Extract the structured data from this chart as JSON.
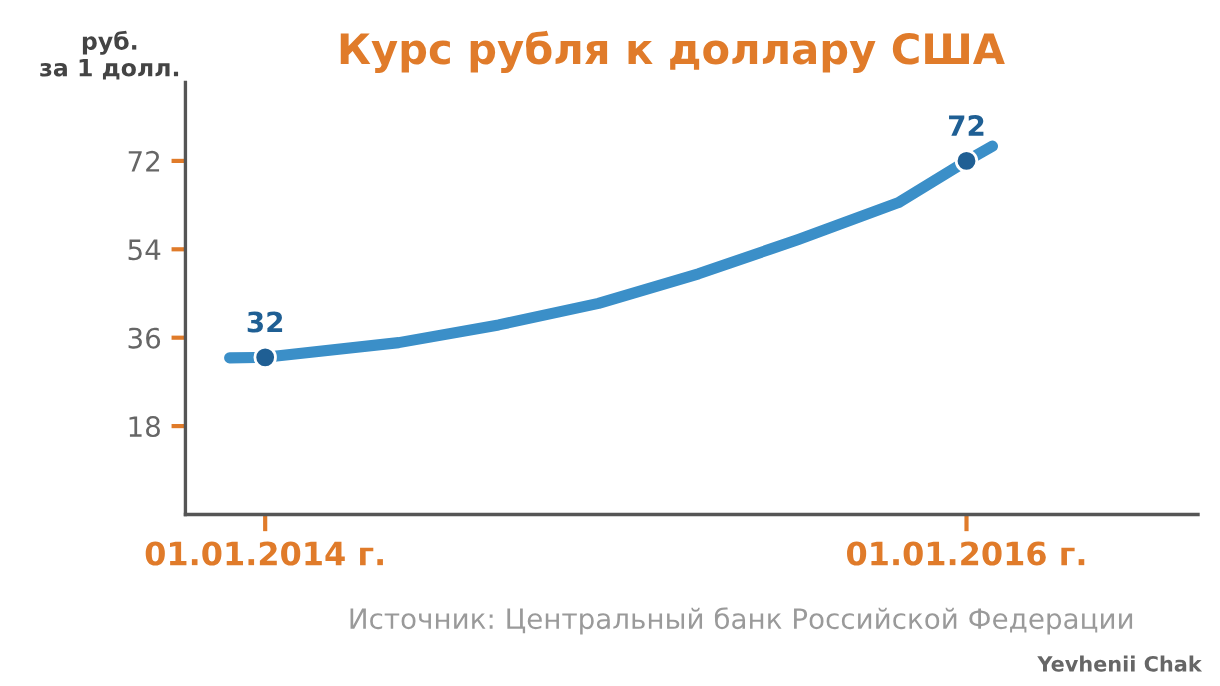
{
  "chart_data": {
    "type": "line",
    "title": "Курс рубля к доллару США",
    "ylabel": "руб.\nза 1 долл.",
    "xlim": [
      "2013-10-10",
      "2016-08-29"
    ],
    "ylim": [
      0,
      88
    ],
    "xticks": [
      {
        "value": "2014-01-01",
        "label": "01.01.2014 г."
      },
      {
        "value": "2016-01-01",
        "label": "01.01.2016 г."
      }
    ],
    "yticks": [
      18,
      36,
      54,
      72
    ],
    "grid": false,
    "legend": false,
    "series": [
      {
        "color": "#3b8fc8",
        "marker": "none",
        "x": [
          "2013-11-25",
          "2014-01-01",
          "2014-05-20",
          "2014-09-01",
          "2014-12-14",
          "2015-03-28",
          "2015-07-10",
          "2015-10-22",
          "2016-01-01",
          "2016-01-28"
        ],
        "values": [
          31.9,
          32,
          35,
          38.6,
          43,
          49,
          56,
          63.5,
          72,
          75
        ]
      },
      {
        "type": "scatter",
        "color": "#1f5f94",
        "marker": "circle",
        "x": [
          "2014-01-01",
          "2016-01-01"
        ],
        "values": [
          32,
          72
        ],
        "value_labels": [
          "32",
          "72"
        ]
      }
    ],
    "annotations": [
      "Источник: Центральный банк Российской Федерации",
      "Yevhenii Chak"
    ]
  }
}
